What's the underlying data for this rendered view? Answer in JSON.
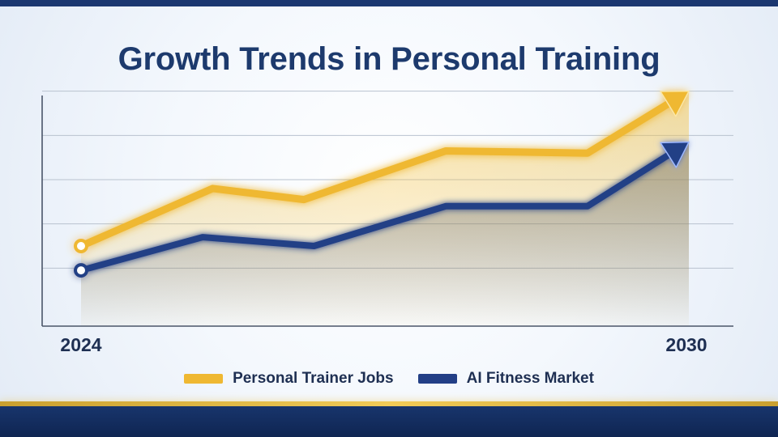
{
  "colors": {
    "brand_navy": "#1b3770",
    "gold": "#efb832",
    "navy_series": "#233f86",
    "title": "#1d3a6d",
    "grid": "#b9c2cf",
    "axis": "#4a5568"
  },
  "header": {
    "title": "Growth Trends in Personal Training"
  },
  "legend": {
    "items": [
      {
        "label": "Personal Trainer Jobs",
        "color": "#efb832"
      },
      {
        "label": "AI Fitness Market",
        "color": "#233f86"
      }
    ]
  },
  "chart_data": {
    "type": "line",
    "title": "Growth Trends in Personal Training",
    "xlabel": "",
    "ylabel": "",
    "x_tick_labels": [
      "2024",
      "2030"
    ],
    "xlim": [
      2024,
      2030
    ],
    "ylim": [
      0,
      6
    ],
    "grid": true,
    "y_tick_labels_shown": false,
    "legend_position": "bottom",
    "series": [
      {
        "name": "Personal Trainer Jobs",
        "color": "#efb832",
        "marker": "arrow",
        "points": [
          {
            "x": 2024,
            "y": 1.5
          },
          {
            "x": 2025.3,
            "y": 2.8
          },
          {
            "x": 2026.2,
            "y": 2.55
          },
          {
            "x": 2027.6,
            "y": 3.65
          },
          {
            "x": 2029.0,
            "y": 3.6
          },
          {
            "x": 2030,
            "y": 5.0
          }
        ]
      },
      {
        "name": "AI Fitness Market",
        "color": "#233f86",
        "marker": "arrow",
        "points": [
          {
            "x": 2024,
            "y": 0.95
          },
          {
            "x": 2025.2,
            "y": 1.7
          },
          {
            "x": 2026.3,
            "y": 1.5
          },
          {
            "x": 2027.6,
            "y": 2.4
          },
          {
            "x": 2029.0,
            "y": 2.4
          },
          {
            "x": 2030,
            "y": 3.85
          }
        ]
      }
    ]
  }
}
